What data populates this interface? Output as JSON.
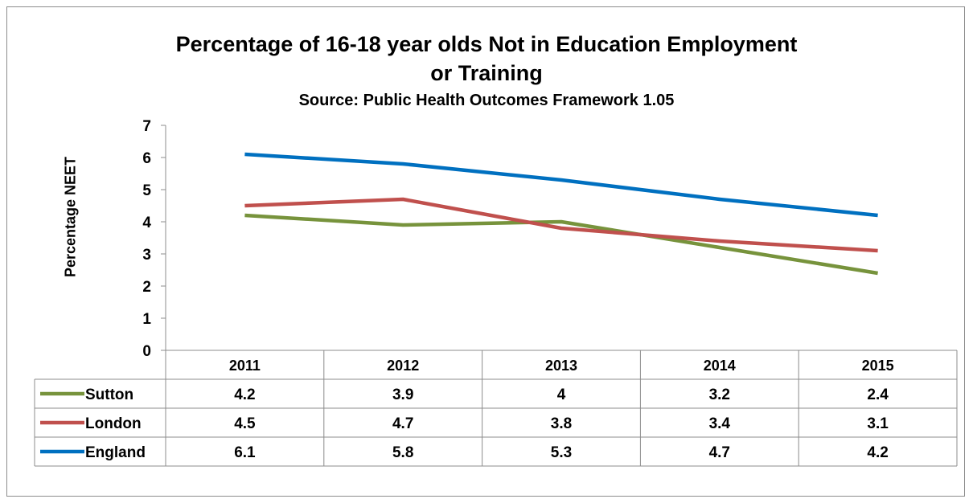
{
  "chart_data": {
    "type": "line",
    "title": "Percentage of 16-18 year olds Not in Education Employment",
    "title_line2": "or Training",
    "subtitle": "Source: Public Health Outcomes Framework 1.05",
    "ylabel": "Percentage NEET",
    "xlabel": "",
    "ylim": [
      0,
      7
    ],
    "yticks": [
      0,
      1,
      2,
      3,
      4,
      5,
      6,
      7
    ],
    "categories": [
      "2011",
      "2012",
      "2013",
      "2014",
      "2015"
    ],
    "grid": false,
    "legend": "data-table",
    "series": [
      {
        "name": "Sutton",
        "color": "#77933c",
        "values": [
          4.2,
          3.9,
          4,
          3.2,
          2.4
        ]
      },
      {
        "name": "London",
        "color": "#c0504d",
        "values": [
          4.5,
          4.7,
          3.8,
          3.4,
          3.1
        ]
      },
      {
        "name": "England",
        "color": "#0070c0",
        "values": [
          6.1,
          5.8,
          5.3,
          4.7,
          4.2
        ]
      }
    ]
  }
}
